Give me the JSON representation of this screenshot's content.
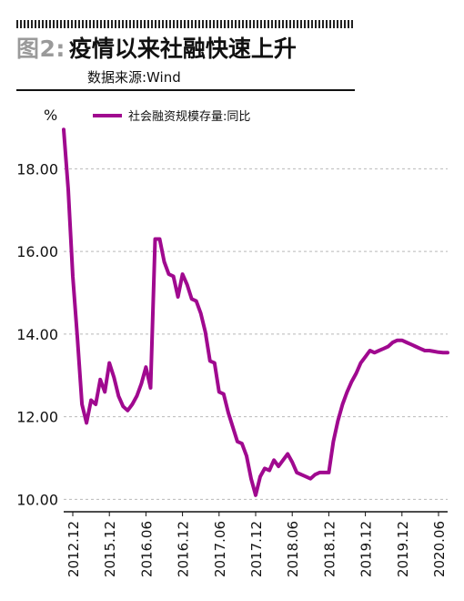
{
  "header": {
    "figure_label": "图2:",
    "title": "疫情以来社融快速上升",
    "source": "数据来源:Wind"
  },
  "chart_data": {
    "type": "line",
    "ylabel": "%",
    "ylim": [
      9.7,
      19.0
    ],
    "yticks": [
      10,
      12,
      14,
      16,
      18
    ],
    "ytick_labels": [
      "10.00",
      "12.00",
      "14.00",
      "16.00",
      "18.00"
    ],
    "grid": "horizontal dashed",
    "legend": "top",
    "xtick_labels": [
      "2012.12",
      "2015.12",
      "2016.06",
      "2016.12",
      "2017.06",
      "2017.12",
      "2018.06",
      "2018.12",
      "2019.12",
      "2019.12",
      "2020.06"
    ],
    "series": [
      {
        "name": "社会融资规模存量:同比",
        "color": "#a0098f",
        "x": [
          0,
          0.5,
          1,
          1.5,
          2,
          2.5,
          3,
          3.5,
          4,
          4.5,
          5,
          5.5,
          6,
          6.5,
          7,
          7.5,
          8,
          8.5,
          9,
          9.5,
          10,
          10.5,
          11,
          11.5,
          12,
          12.5,
          13,
          13.5,
          14,
          14.5,
          15,
          15.5,
          16,
          16.5,
          17,
          17.5,
          18,
          18.5,
          19,
          19.5,
          20,
          20.5,
          21,
          21.5,
          22,
          22.5,
          23,
          23.5,
          24,
          24.5,
          25,
          25.5,
          26,
          26.5,
          27,
          27.5,
          28,
          28.5,
          29,
          29.5,
          30,
          30.5,
          31,
          31.5,
          32,
          32.5,
          33,
          33.5,
          34,
          34.5,
          35,
          35.5,
          36,
          36.5,
          37,
          37.5,
          38,
          38.5,
          39,
          39.5,
          40,
          40.5,
          41,
          41.5,
          42
        ],
        "values": [
          18.95,
          17.5,
          15.4,
          13.9,
          12.3,
          11.85,
          12.4,
          12.3,
          12.9,
          12.6,
          13.3,
          12.95,
          12.5,
          12.25,
          12.15,
          12.3,
          12.5,
          12.8,
          13.2,
          12.7,
          16.3,
          16.3,
          15.75,
          15.45,
          15.4,
          14.9,
          15.45,
          15.2,
          14.85,
          14.8,
          14.5,
          14.05,
          13.35,
          13.3,
          12.6,
          12.55,
          12.1,
          11.75,
          11.4,
          11.35,
          11.05,
          10.5,
          10.1,
          10.55,
          10.75,
          10.7,
          10.95,
          10.8,
          10.95,
          11.1,
          10.9,
          10.65,
          10.6,
          10.55,
          10.5,
          10.6,
          10.65,
          10.65,
          10.65,
          11.4,
          11.9,
          12.3,
          12.6,
          12.85,
          13.05,
          13.3,
          13.45,
          13.6,
          13.55,
          13.6,
          13.65,
          13.7,
          13.8,
          13.85,
          13.85,
          13.8,
          13.75,
          13.7,
          13.65,
          13.6,
          13.6,
          13.58,
          13.56,
          13.55,
          13.55
        ]
      }
    ]
  }
}
